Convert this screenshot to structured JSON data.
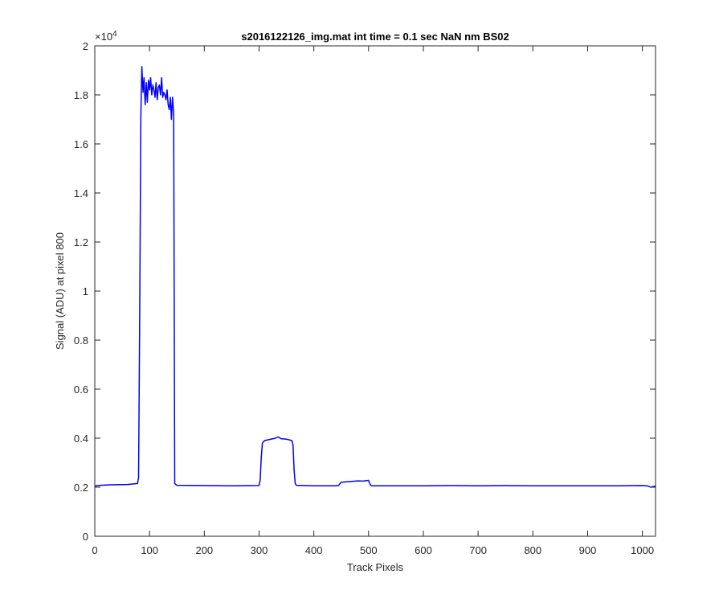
{
  "chart_data": {
    "type": "line",
    "title": "s2016122126_img.mat int time = 0.1 sec  NaN nm BS02",
    "xlabel": "Track Pixels",
    "ylabel": "Signal (ADU) at pixel 800",
    "y_exponent_label": "×10",
    "y_exponent_power": "4",
    "xlim": [
      0,
      1024
    ],
    "ylim": [
      0,
      20000
    ],
    "x_ticks": [
      0,
      100,
      200,
      300,
      400,
      500,
      600,
      700,
      800,
      900,
      1000
    ],
    "x_tick_labels": [
      "0",
      "100",
      "200",
      "300",
      "400",
      "500",
      "600",
      "700",
      "800",
      "900",
      "1000"
    ],
    "y_ticks": [
      0,
      2000,
      4000,
      6000,
      8000,
      10000,
      12000,
      14000,
      16000,
      18000,
      20000
    ],
    "y_tick_labels": [
      "0",
      "0.2",
      "0.4",
      "0.6",
      "0.8",
      "1",
      "1.2",
      "1.4",
      "1.6",
      "1.8",
      "2"
    ],
    "grid": false,
    "series": [
      {
        "color": "#0000ff",
        "x": [
          0,
          10,
          30,
          60,
          78,
          80,
          82,
          84,
          85,
          86,
          88,
          90,
          92,
          94,
          96,
          98,
          100,
          102,
          104,
          106,
          108,
          110,
          112,
          114,
          116,
          118,
          120,
          122,
          124,
          126,
          128,
          130,
          132,
          134,
          136,
          138,
          140,
          142,
          144,
          146,
          150,
          200,
          250,
          300,
          302,
          304,
          306,
          310,
          320,
          330,
          335,
          340,
          350,
          360,
          362,
          364,
          366,
          368,
          400,
          440,
          445,
          450,
          460,
          470,
          480,
          490,
          500,
          502,
          504,
          506,
          550,
          600,
          650,
          700,
          750,
          800,
          850,
          900,
          950,
          1000,
          1010,
          1015,
          1024
        ],
        "y": [
          2050,
          2080,
          2100,
          2110,
          2150,
          2400,
          9000,
          17000,
          18200,
          19150,
          18100,
          18700,
          17600,
          18500,
          17700,
          18600,
          18200,
          18700,
          18000,
          18400,
          18200,
          17900,
          18500,
          17800,
          18300,
          18400,
          18000,
          18700,
          17900,
          18100,
          18000,
          17800,
          18200,
          17600,
          17400,
          17900,
          17000,
          17900,
          17200,
          2150,
          2080,
          2070,
          2060,
          2070,
          2300,
          3200,
          3800,
          3900,
          3950,
          4000,
          4050,
          3980,
          3960,
          3900,
          3700,
          2700,
          2150,
          2080,
          2060,
          2060,
          2070,
          2200,
          2220,
          2240,
          2260,
          2250,
          2280,
          2150,
          2080,
          2060,
          2060,
          2060,
          2070,
          2060,
          2070,
          2060,
          2060,
          2060,
          2060,
          2070,
          2050,
          2000,
          2050
        ]
      }
    ]
  }
}
